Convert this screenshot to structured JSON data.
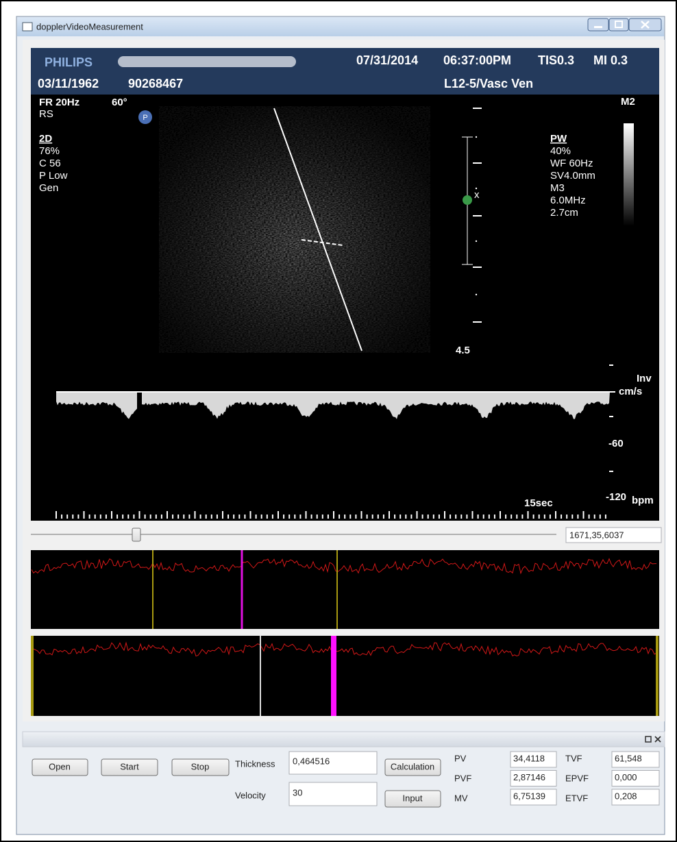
{
  "window": {
    "title": "dopplerVideoMeasurement"
  },
  "scan": {
    "brand": "PHILIPS",
    "date": "07/31/2014",
    "time": "06:37:00PM",
    "tis": "TIS0.3",
    "mi": "MI 0.3",
    "birth_date": "03/11/1962",
    "patient_id": "90268467",
    "probe": "L12-5/Vasc Ven",
    "frame_rate": "FR 20Hz",
    "angle": "60°",
    "rs": "RS",
    "marker": "P",
    "cursor": "x",
    "mode_2d": [
      "2D",
      "76%",
      "C 56",
      "P Low",
      "Gen"
    ],
    "mode_pw": [
      "PW",
      "40%",
      "WF  60Hz",
      "SV4.0mm",
      "M3",
      "6.0MHz",
      "2.7cm"
    ],
    "map": "M2",
    "depth": "4.5",
    "doppler_scale": [
      "Inv",
      "cm/s",
      "-60",
      "-120"
    ],
    "heart_rate_unit": "bpm",
    "sweep": "15sec"
  },
  "slider": {
    "readout": "1671,35,6037"
  },
  "controls": {
    "buttons": [
      "Open",
      "Start",
      "Stop",
      "Calculation",
      "Input"
    ],
    "thickness": {
      "label": "Thickness",
      "value": "0,464516"
    },
    "velocity": {
      "label": "Velocity",
      "value": "30"
    },
    "results": [
      {
        "label": "PV",
        "value": "34,4118"
      },
      {
        "label": "PVF",
        "value": "2,87146"
      },
      {
        "label": "MV",
        "value": "6,75139"
      },
      {
        "label": "TVF",
        "value": "61,548"
      },
      {
        "label": "EPVF",
        "value": "0,000"
      },
      {
        "label": "ETVF",
        "value": "0,208"
      }
    ]
  }
}
